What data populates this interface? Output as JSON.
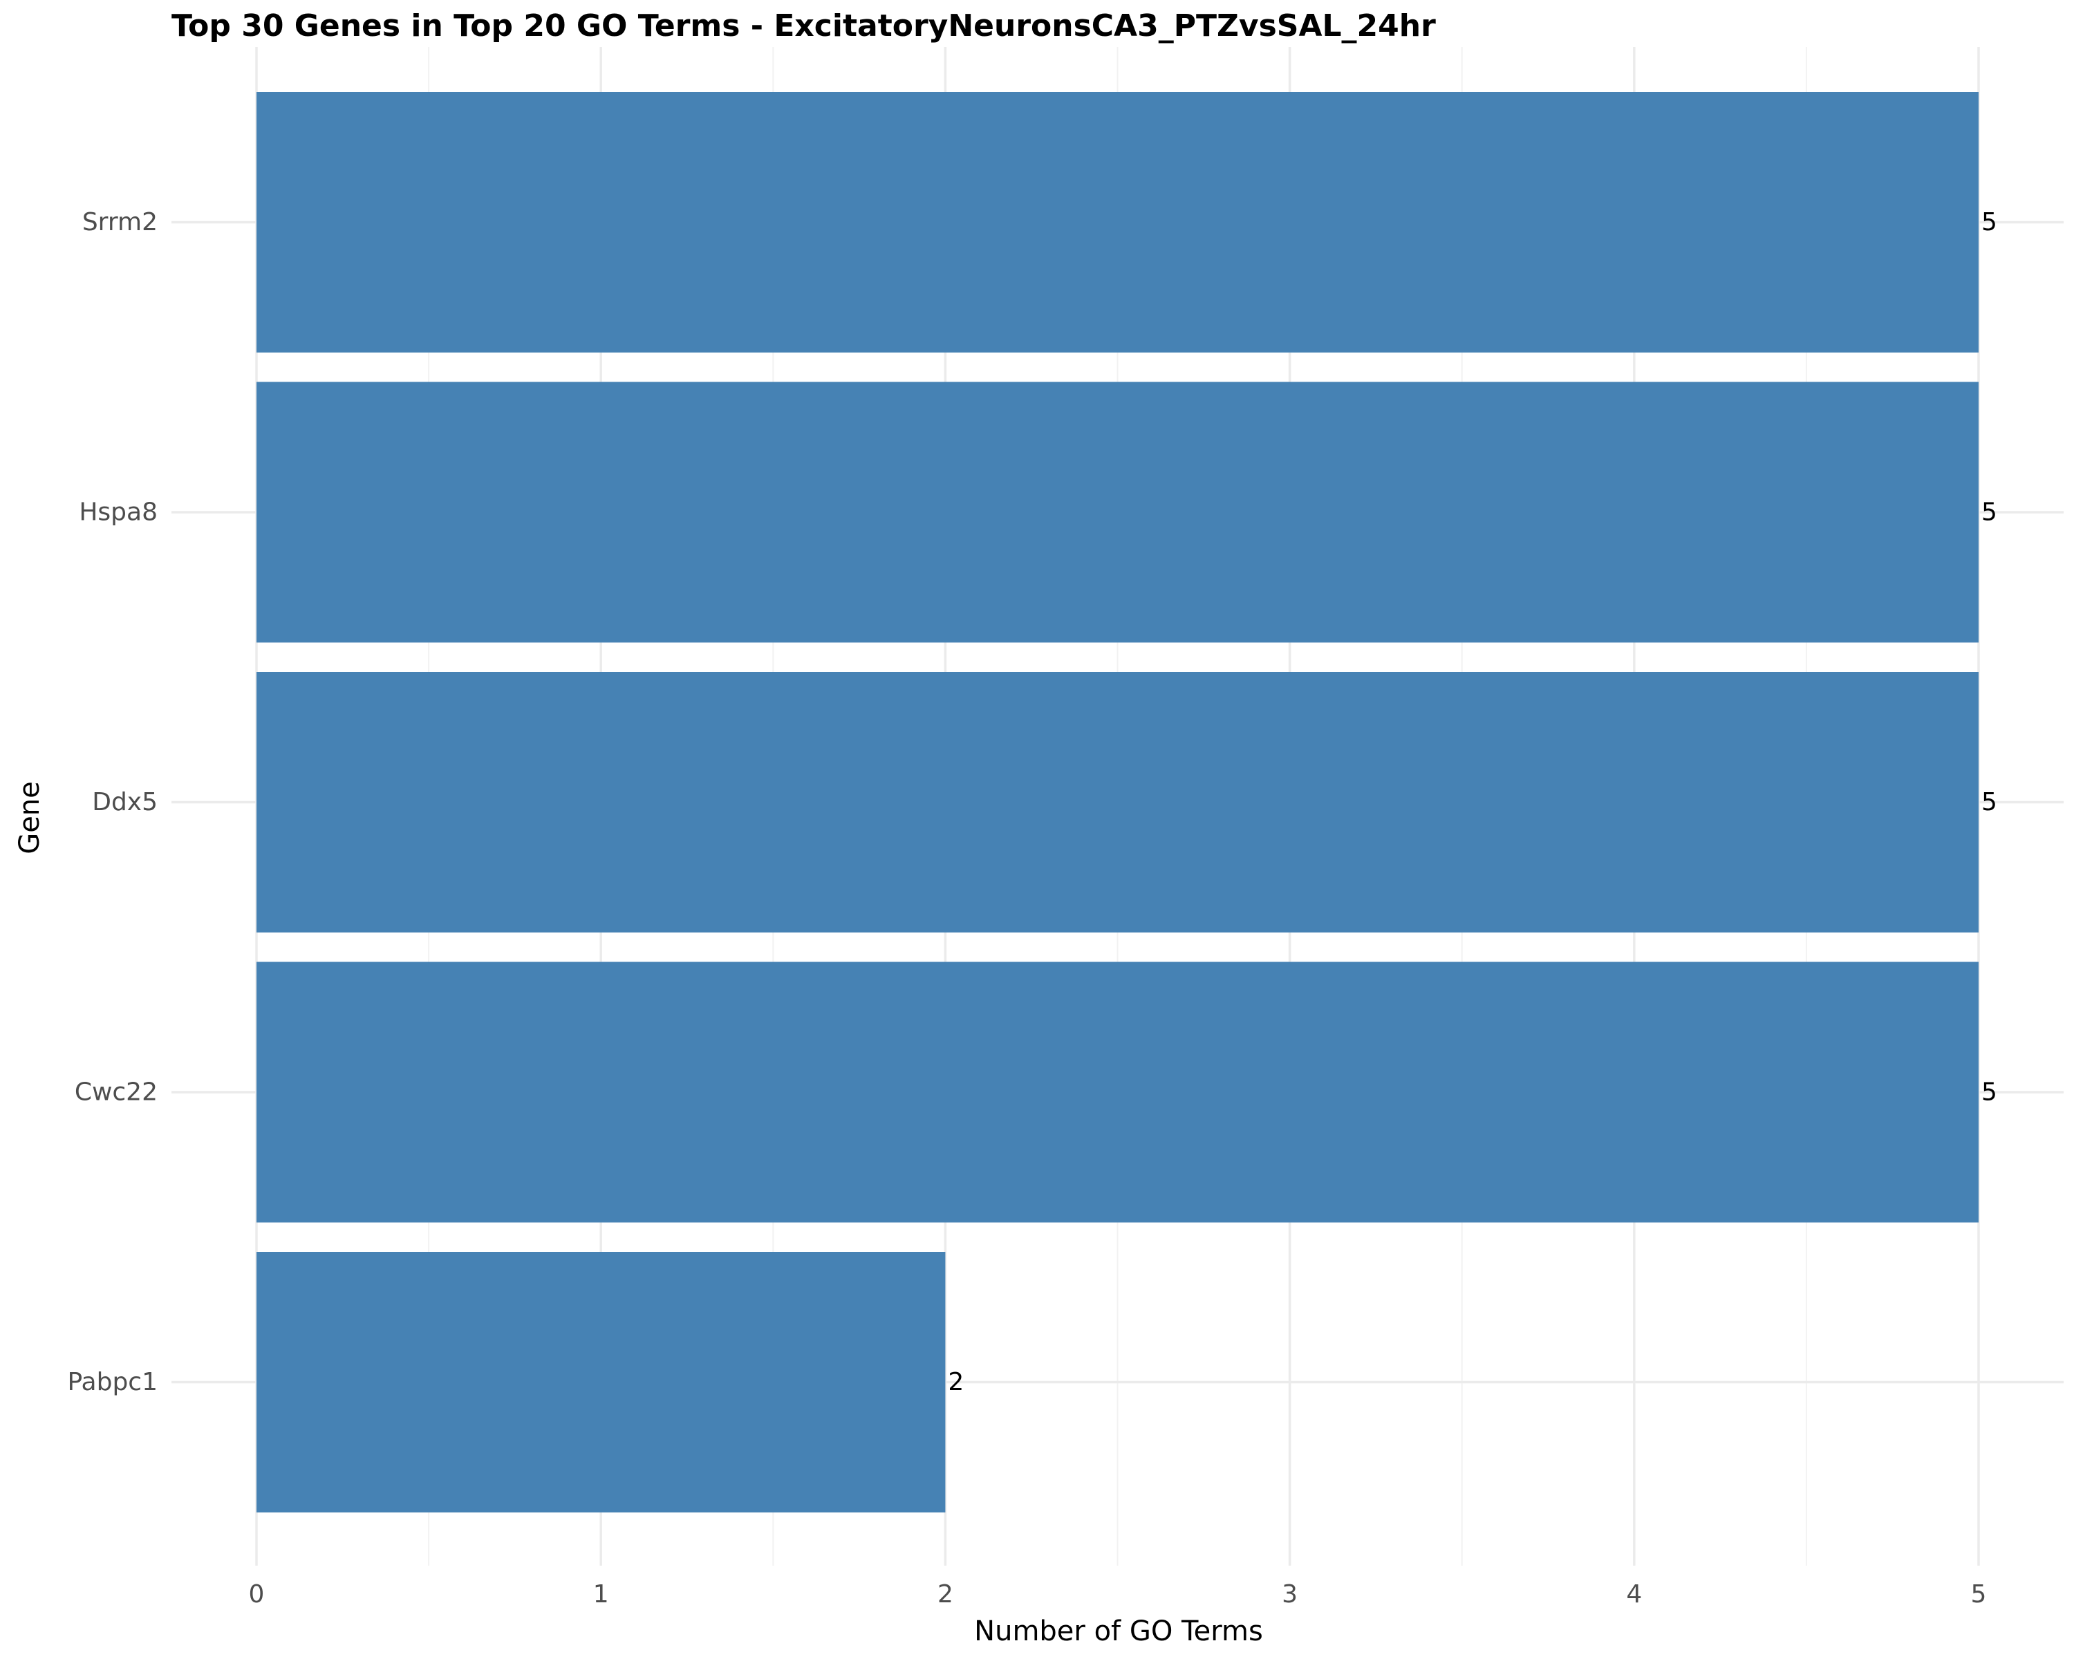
{
  "chart_data": {
    "type": "bar",
    "orientation": "horizontal",
    "title": "Top 30 Genes in Top 20 GO Terms - ExcitatoryNeuronsCA3_PTZvsSAL_24hr",
    "xlabel": "Number of GO Terms",
    "ylabel": "Gene",
    "categories": [
      "Srrm2",
      "Hspa8",
      "Ddx5",
      "Cwc22",
      "Pabpc1"
    ],
    "values": [
      5,
      5,
      5,
      5,
      2
    ],
    "data_labels": [
      "5",
      "5",
      "5",
      "5",
      "2"
    ],
    "xlim": [
      0,
      5
    ],
    "xticks": [
      0,
      1,
      2,
      3,
      4,
      5
    ],
    "bar_color": "#4682b4",
    "grid": true,
    "legend": "none"
  }
}
